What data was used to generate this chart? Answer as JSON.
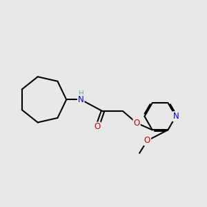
{
  "background_color": "#e8e8e8",
  "bond_color": "#000000",
  "bond_width": 1.5,
  "atom_colors": {
    "N": "#0000cd",
    "O": "#cc0000",
    "C": "#000000",
    "H": "#5aafaf"
  },
  "font_size": 8.5,
  "fig_size": [
    3.0,
    3.0
  ],
  "dpi": 100,
  "xlim": [
    0.0,
    5.2
  ],
  "ylim": [
    0.5,
    3.6
  ]
}
